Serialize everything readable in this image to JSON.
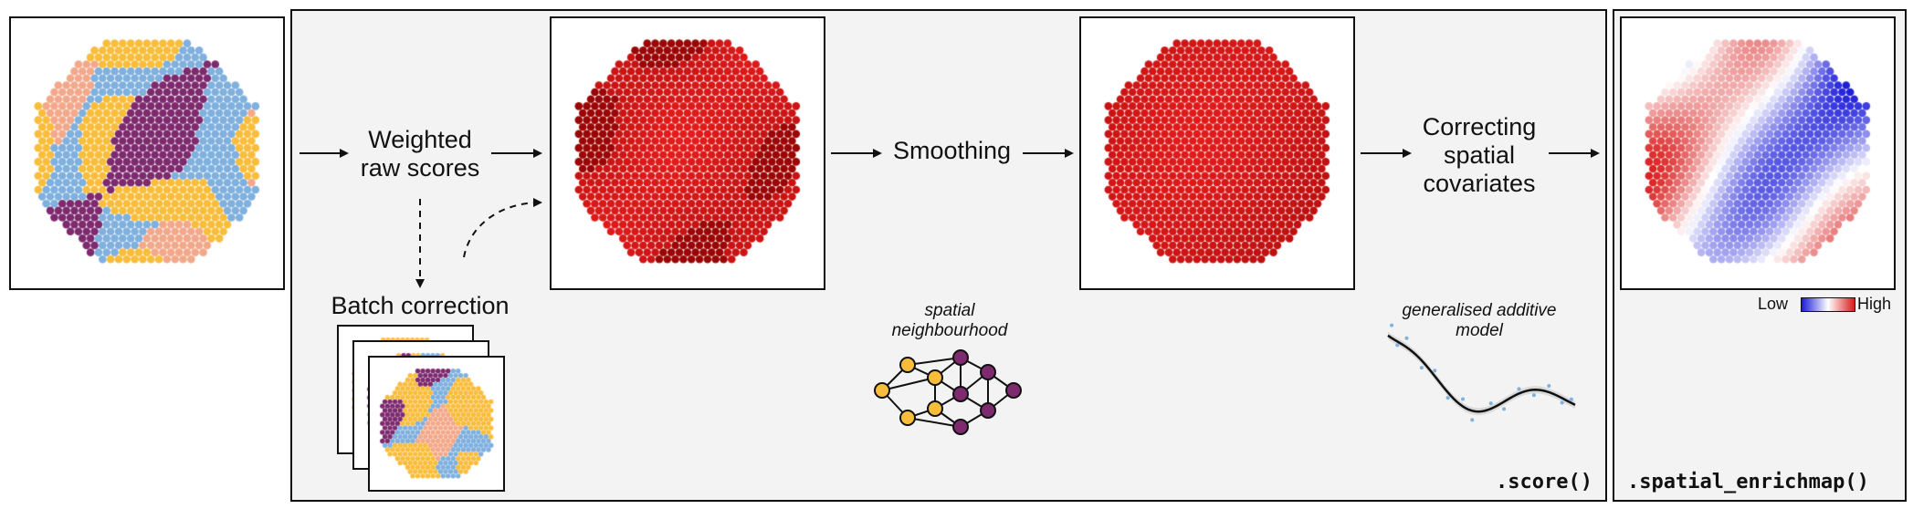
{
  "steps": {
    "weighted_raw_scores": "Weighted\nraw scores",
    "batch_correction": "Batch correction",
    "smoothing": "Smoothing",
    "correcting_spatial_covariates": "Correcting\nspatial\ncovariates"
  },
  "annotations": {
    "spatial_neighbourhood": "spatial\nneighbourhood",
    "generalised_additive_model": "generalised additive\nmodel"
  },
  "functions": {
    "score": ".score()",
    "spatial_enrichmap": ".spatial_enrichmap()"
  },
  "colorbar": {
    "low_label": "Low",
    "high_label": "High",
    "colors": [
      "#1a1ad8",
      "#ffffff",
      "#d81a1a"
    ]
  },
  "palette": {
    "cluster_colors": [
      "#f9bd3c",
      "#7fb0de",
      "#f2a98b",
      "#7d2a6e"
    ],
    "score_red": "#e81010",
    "score_dark_red": "#a70606"
  },
  "graph_node_colors": [
    "#f9bd3c",
    "#7d2a6e"
  ]
}
